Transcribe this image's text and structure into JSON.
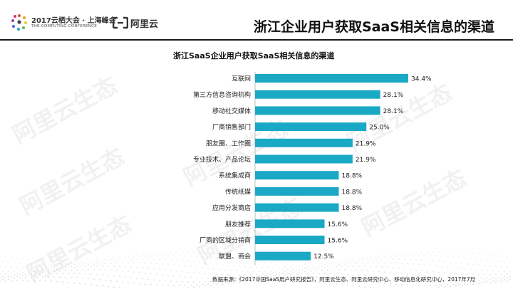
{
  "header": {
    "conference_title": "2017云栖大会 · 上海峰会",
    "conference_subtitle": "THE COMPUTING CONFERENCE",
    "brand": "阿里云",
    "page_title": "浙江企业用户获取SaaS相关信息的渠道"
  },
  "watermark": {
    "text": "阿里云生态"
  },
  "chart_data": {
    "type": "bar",
    "orientation": "horizontal",
    "title": "浙江SaaS企业用户获取SaaS相关信息的渠道",
    "categories": [
      "互联网",
      "第三方信息咨询机构",
      "移动社交媒体",
      "厂商销售部门",
      "朋友圈、工作圈",
      "专业技术、产品论坛",
      "系统集成商",
      "传统纸媒",
      "应用分发商店",
      "朋友推荐",
      "厂商的区域分销商",
      "联盟、商会"
    ],
    "values": [
      34.4,
      28.1,
      28.1,
      25.0,
      21.9,
      21.9,
      18.8,
      18.8,
      18.8,
      15.6,
      15.6,
      12.5
    ],
    "value_labels": [
      "34.4%",
      "28.1%",
      "28.1%",
      "25.0%",
      "21.9%",
      "21.9%",
      "18.8%",
      "18.8%",
      "18.8%",
      "15.6%",
      "15.6%",
      "12.5%"
    ],
    "bar_color": "#1aa9c5",
    "xlim": [
      0,
      40
    ],
    "grid": false,
    "legend": "none"
  },
  "footer": {
    "source": "数据来源：《2017中国SaaS用户研究报告》，阿里云生态、阿里云研究中心、移动信息化研究中心，2017年7月"
  }
}
